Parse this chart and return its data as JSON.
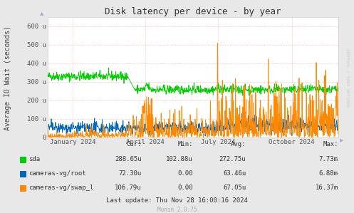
{
  "title": "Disk latency per device - by year",
  "ylabel": "Average IO Wait (seconds)",
  "bg_color": "#e8e8e8",
  "plot_bg_color": "#ffffff",
  "grid_color": "#ff9999",
  "ytick_labels": [
    "0",
    "100 u",
    "200 u",
    "300 u",
    "400 u",
    "500 u",
    "600 u"
  ],
  "ytick_vals": [
    0,
    100,
    200,
    300,
    400,
    500,
    600
  ],
  "ylim": [
    0,
    650
  ],
  "xtick_labels": [
    "January 2024",
    "April 2024",
    "July 2024",
    "October 2024"
  ],
  "series_keys": [
    "sda",
    "cameras-vg/root",
    "cameras-vg/swap_l"
  ],
  "series": {
    "sda": {
      "color": "#00cc00",
      "cur": "288.65u",
      "min": "102.88u",
      "avg": "272.75u",
      "max": "7.73m"
    },
    "cameras-vg/root": {
      "color": "#0066bb",
      "cur": "72.30u",
      "min": "0.00",
      "avg": "63.46u",
      "max": "6.88m"
    },
    "cameras-vg/swap_l": {
      "color": "#ff8800",
      "cur": "106.79u",
      "min": "0.00",
      "avg": "67.05u",
      "max": "16.37m"
    }
  },
  "last_update": "Last update: Thu Nov 28 16:00:16 2024",
  "munin_version": "Munin 2.0.75",
  "rrdtool_label": "RRDTOOL / TOBI OETIKER",
  "title_fontsize": 9,
  "axis_label_fontsize": 7,
  "tick_fontsize": 6.5,
  "legend_fontsize": 6.5,
  "watermark_fontsize": 5.5
}
